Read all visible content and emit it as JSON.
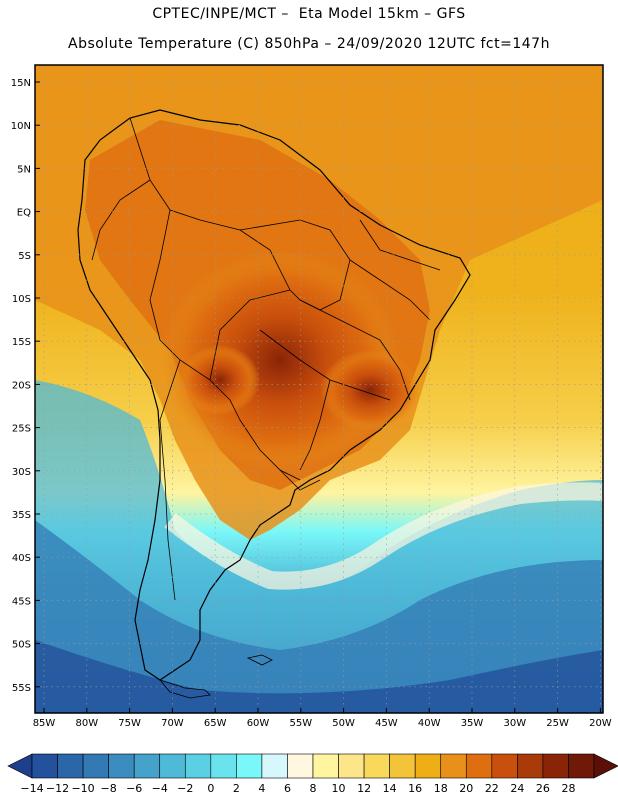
{
  "header": {
    "line1": "CPTEC/INPE/MCT –  Eta Model 15km – GFS",
    "line2": "Absolute Temperature (C) 850hPa – 24/09/2020 12UTC fct=147h"
  },
  "map": {
    "lat_labels": [
      "15N",
      "10N",
      "5N",
      "EQ",
      "5S",
      "10S",
      "15S",
      "20S",
      "25S",
      "30S",
      "35S",
      "40S",
      "45S",
      "50S",
      "55S"
    ],
    "lon_labels": [
      "85W",
      "80W",
      "75W",
      "70W",
      "65W",
      "60W",
      "55W",
      "50W",
      "45W",
      "40W",
      "35W",
      "30W",
      "25W",
      "20W"
    ],
    "grid": "dotted"
  },
  "colorbar": {
    "labels": [
      "-14",
      "-12",
      "-10",
      "-8",
      "-6",
      "-4",
      "-2",
      "0",
      "2",
      "4",
      "6",
      "8",
      "10",
      "12",
      "14",
      "16",
      "18",
      "20",
      "22",
      "24",
      "26",
      "28"
    ],
    "colors": [
      "#1d3f8c",
      "#23519b",
      "#2a66a8",
      "#3379b4",
      "#3b8cbf",
      "#44a2cb",
      "#4fbad8",
      "#5bcfe3",
      "#69e4ee",
      "#7af7f8",
      "#d6f7fb",
      "#fff7e0",
      "#fff4a0",
      "#fde68a",
      "#f8d95c",
      "#f3c33a",
      "#eeae16",
      "#e8901a",
      "#df6e10",
      "#c94f0c",
      "#a93a0a",
      "#8a2408",
      "#6f1a08",
      "#5a1006"
    ]
  },
  "colors": {
    "frame": "#000000",
    "ocean_warm": "#eeae16",
    "ocean_cold": "#3379b4"
  }
}
